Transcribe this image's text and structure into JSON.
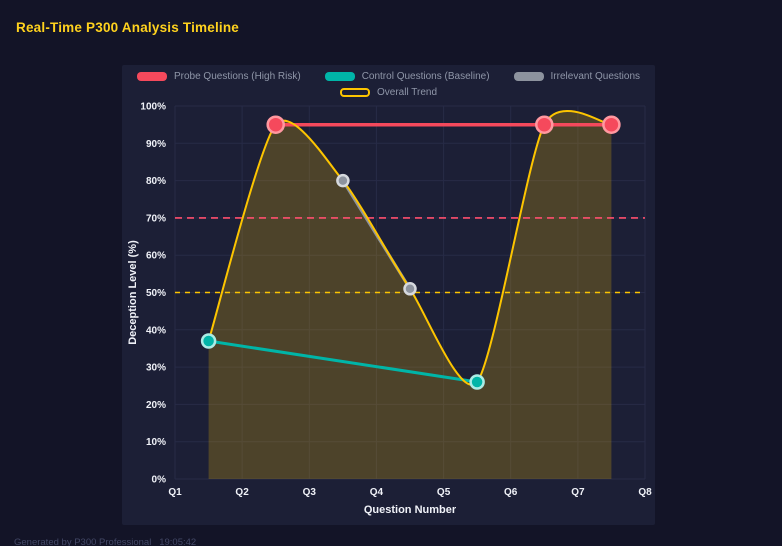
{
  "page": {
    "title": "Real-Time P300 Analysis Timeline",
    "footer": "Generated by P300 Professional   19:05:42"
  },
  "colors": {
    "background": "#131427",
    "panel": "#1c1f36",
    "title": "#ffd21e",
    "grid": "#272b47",
    "tick_text": "#f0f2f8",
    "legend_text": "#8f96a8"
  },
  "chart_data": {
    "type": "line",
    "title": "Real-Time P300 Analysis Timeline",
    "xlabel": "Question Number",
    "ylabel": "Deception Level (%)",
    "xlim": [
      1,
      8
    ],
    "ylim": [
      0,
      100
    ],
    "x_ticks": [
      "Q1",
      "Q2",
      "Q3",
      "Q4",
      "Q5",
      "Q6",
      "Q7",
      "Q8"
    ],
    "y_ticks": [
      "0%",
      "10%",
      "20%",
      "30%",
      "40%",
      "50%",
      "60%",
      "70%",
      "80%",
      "90%",
      "100%"
    ],
    "grid": true,
    "legend_position": "top",
    "series": [
      {
        "name": "Probe Questions (High Risk)",
        "color": "#f5495c",
        "marker_stroke": "#ff98a0",
        "line_width": 3.5,
        "marker_radius": 8,
        "markers": true,
        "swatch": "bar",
        "x": [
          2.5,
          6.5,
          7.5
        ],
        "y": [
          95,
          95,
          95
        ]
      },
      {
        "name": "Control Questions (Baseline)",
        "color": "#00b5a8",
        "marker_stroke": "#aaece6",
        "line_width": 3,
        "marker_radius": 6.5,
        "markers": true,
        "swatch": "bar",
        "x": [
          1.5,
          5.5
        ],
        "y": [
          37,
          26
        ]
      },
      {
        "name": "Irrelevant Questions",
        "color": "#8d939e",
        "marker_stroke": "#d6d9de",
        "line_width": 3,
        "marker_radius": 5.5,
        "markers": true,
        "swatch": "bar",
        "x": [
          3.5,
          4.5
        ],
        "y": [
          80,
          51
        ]
      },
      {
        "name": "Overall Trend",
        "color": "#fdc500",
        "line_width": 2,
        "markers": false,
        "smooth": true,
        "fill": "rgba(253,197,0,0.22)",
        "swatch": "outline",
        "x": [
          1.5,
          2.5,
          3.5,
          4.5,
          5.5,
          6.5,
          7.5
        ],
        "y": [
          37,
          95,
          80,
          51,
          26,
          95,
          95
        ]
      }
    ],
    "reference_lines": [
      {
        "y": 70,
        "color": "#ff4f6e",
        "dash": [
          7,
          5
        ],
        "width": 1.6
      },
      {
        "y": 50,
        "color": "#fdc500",
        "dash": [
          5,
          5
        ],
        "width": 1.6
      }
    ]
  }
}
